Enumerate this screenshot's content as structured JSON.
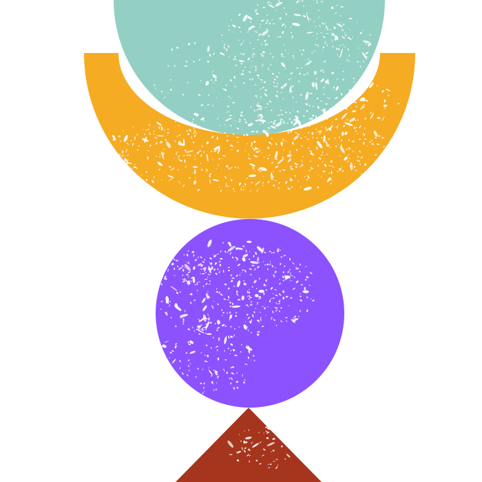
{
  "artwork": {
    "background": "#ffffff",
    "texture_color": "#ffffff",
    "shapes": [
      {
        "id": "teal-circle",
        "kind": "circle",
        "color": "#93cfc3"
      },
      {
        "id": "orange-half-ring",
        "kind": "half-ring",
        "color": "#f5ab22"
      },
      {
        "id": "purple-circle",
        "kind": "circle",
        "color": "#8c52fe"
      },
      {
        "id": "rust-triangle",
        "kind": "triangle",
        "color": "#a6351e"
      }
    ]
  }
}
